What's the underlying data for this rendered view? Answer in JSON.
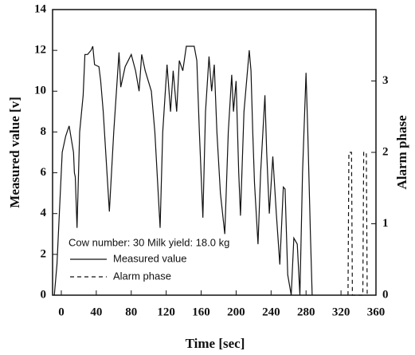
{
  "chart_data": {
    "type": "line",
    "xlabel": "Time [sec]",
    "ylabel": "Measured value [v]",
    "y2label": "Alarm phase",
    "annotation": "Cow number: 30   Milk yield: 18.0 kg",
    "xlim": [
      -10,
      360
    ],
    "xticks": [
      0,
      40,
      80,
      120,
      160,
      200,
      240,
      280,
      320,
      360
    ],
    "ylim": [
      0,
      14
    ],
    "yticks": [
      0,
      2,
      4,
      6,
      8,
      10,
      12,
      14
    ],
    "y2lim": [
      0,
      4
    ],
    "y2ticks": [
      0,
      1,
      2,
      3
    ],
    "series": [
      {
        "name": "Measured value",
        "color": "#111111",
        "dash": "none",
        "x": [
          -8,
          -5,
          1,
          5,
          9,
          14,
          15,
          16,
          18,
          21,
          25,
          27,
          30,
          34,
          36,
          38,
          43,
          45,
          48,
          55,
          60,
          66,
          68,
          73,
          80,
          85,
          89,
          92,
          96,
          103,
          107,
          113,
          116,
          121,
          125,
          128,
          132,
          135,
          139,
          143,
          152,
          155,
          158,
          162,
          165,
          169,
          172,
          175,
          178,
          182,
          187,
          191,
          195,
          197,
          200,
          203,
          205,
          209,
          213,
          215,
          217,
          219,
          221,
          225,
          228,
          233,
          235,
          238,
          242,
          246,
          250,
          254,
          256,
          259,
          263,
          266,
          270,
          273,
          276,
          280,
          282,
          285,
          287
        ],
        "values": [
          0,
          1.5,
          7,
          7.8,
          8.3,
          7,
          6,
          5.8,
          3.3,
          8,
          9.8,
          11.8,
          11.8,
          12,
          12.2,
          11.3,
          11.2,
          10.5,
          9,
          4.1,
          8,
          11.9,
          10.2,
          11.2,
          11.8,
          11,
          10,
          11.8,
          11,
          10,
          8,
          3.3,
          8,
          11.3,
          9,
          11,
          9,
          11.5,
          11,
          12.2,
          12.2,
          11.5,
          8,
          3.8,
          9,
          11.7,
          10,
          11.3,
          8,
          5,
          3,
          8,
          10.8,
          9,
          10.5,
          6,
          3.9,
          9,
          11,
          12,
          11,
          8,
          5.5,
          2.5,
          6,
          9.8,
          7,
          4,
          6.8,
          4,
          1.5,
          5.3,
          5.2,
          1,
          0,
          2.8,
          2.5,
          0,
          6,
          10.9,
          8,
          3,
          0
        ]
      },
      {
        "name": "Alarm phase",
        "color": "#111111",
        "dash": "5,4",
        "axis": "y2",
        "x": [
          328,
          329,
          332,
          333,
          345,
          346,
          349,
          350
        ],
        "values": [
          0,
          2,
          2,
          0,
          0,
          2,
          2,
          0
        ]
      }
    ]
  }
}
